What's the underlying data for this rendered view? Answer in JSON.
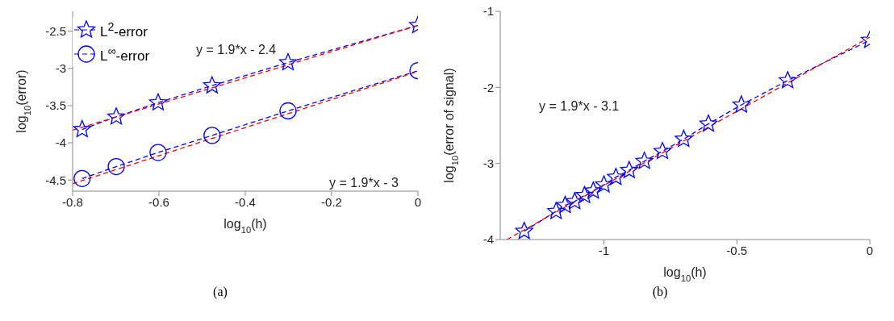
{
  "chart_data": [
    {
      "type": "line",
      "xlabel": "log$_{10}$(h)",
      "ylabel": "log$_{10}$(error)",
      "xlim": [
        -0.8,
        0
      ],
      "xticks": [
        -0.8,
        -0.6,
        -0.4,
        -0.2,
        0
      ],
      "ylim": [
        -4.65,
        -2.23
      ],
      "yticks": [
        -4.5,
        -4,
        -3.5,
        -3,
        -2.5
      ],
      "legend": "top left",
      "series": [
        {
          "name": "L$^{2}$-error",
          "color": "#0000ff",
          "marker": "star",
          "line_style": "dashed",
          "x": [
            -0.778,
            -0.699,
            -0.602,
            -0.477,
            -0.301,
            0
          ],
          "values": [
            -3.82,
            -3.65,
            -3.46,
            -3.23,
            -2.92,
            -2.42
          ]
        },
        {
          "name": "L$^{∞}$-error",
          "color": "#0000ff",
          "marker": "circle",
          "line_style": "dashed",
          "x": [
            -0.778,
            -0.699,
            -0.602,
            -0.477,
            -0.301,
            0
          ],
          "values": [
            -4.48,
            -4.32,
            -4.13,
            -3.9,
            -3.57,
            -3.03
          ]
        },
        {
          "color": "#ff0000",
          "marker": "none",
          "line_style": "dashed",
          "x": [
            -0.8,
            0
          ],
          "values": [
            -3.83,
            -2.42
          ]
        },
        {
          "color": "#ff0000",
          "marker": "none",
          "line_style": "dashed",
          "x": [
            -0.8,
            0
          ],
          "values": [
            -4.55,
            -3.04
          ]
        }
      ],
      "annotations": [
        "y = 1.9*x - 2.4",
        "y = 1.9*x - 3",
        "(a)"
      ]
    },
    {
      "type": "line",
      "xlabel": "log$_{10}$(h)",
      "ylabel": "log$_{10}$(error of signal)",
      "xlim": [
        -1.39,
        0
      ],
      "xticks": [
        -1,
        -0.5,
        0
      ],
      "ylim": [
        -4,
        -1
      ],
      "yticks": [
        -4,
        -3,
        -2,
        -1
      ],
      "series": [
        {
          "color": "#0000ff",
          "marker": "star",
          "line_style": "dashed",
          "x": [
            -1.3,
            -1.18,
            -1.146,
            -1.11,
            -1.073,
            -1.04,
            -1.0,
            -0.955,
            -0.905,
            -0.848,
            -0.78,
            -0.7,
            -0.607,
            -0.483,
            -0.309,
            0
          ],
          "values": [
            -3.89,
            -3.63,
            -3.55,
            -3.5,
            -3.42,
            -3.36,
            -3.28,
            -3.18,
            -3.09,
            -2.97,
            -2.84,
            -2.68,
            -2.48,
            -2.23,
            -1.91,
            -1.38
          ]
        },
        {
          "color": "#ff0000",
          "marker": "none",
          "line_style": "dashed",
          "x": [
            -1.365,
            0
          ],
          "values": [
            -4,
            -1.34
          ]
        }
      ],
      "annotations": [
        "y = 1.9*x - 3.1",
        "(b)"
      ]
    }
  ]
}
